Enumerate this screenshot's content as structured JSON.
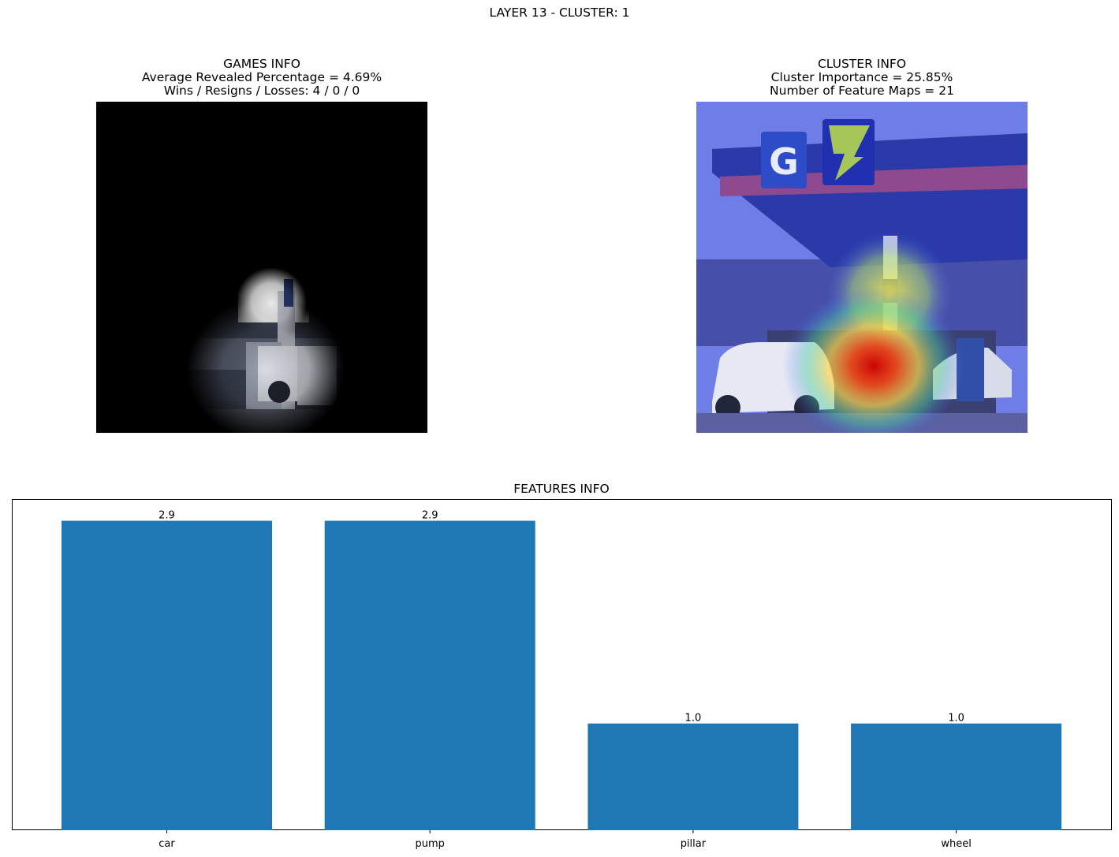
{
  "suptitle": "LAYER 13 - CLUSTER: 1",
  "games_panel": {
    "title": "GAMES INFO",
    "line1": "Average Revealed Percentage = 4.69%",
    "line2": "Wins / Resigns / Losses: 4 / 0 / 0"
  },
  "cluster_panel": {
    "title": "CLUSTER INFO",
    "line1": "Cluster Importance = 25.85%",
    "line2": "Number of Feature Maps = 21"
  },
  "colors": {
    "bar": "#1f77b4"
  },
  "chart_data": {
    "type": "bar",
    "title": "FEATURES INFO",
    "categories": [
      "car",
      "pump",
      "pillar",
      "wheel"
    ],
    "values": [
      2.9,
      2.9,
      1.0,
      1.0
    ],
    "value_labels": [
      "2.9",
      "2.9",
      "1.0",
      "1.0"
    ],
    "xlabel": "",
    "ylabel": "",
    "ylim": [
      0,
      3.0
    ],
    "y_ticks_visible": false,
    "grid": false
  }
}
